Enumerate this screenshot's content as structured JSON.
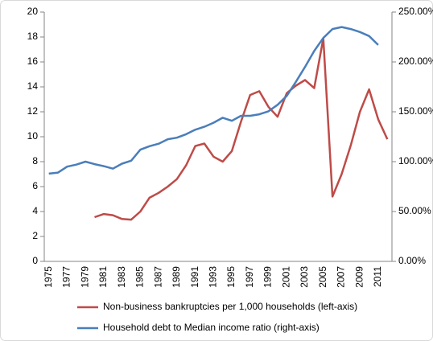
{
  "chart_data": {
    "type": "line",
    "categories": [
      "1975",
      null,
      "1977",
      null,
      "1979",
      null,
      "1981",
      null,
      "1983",
      null,
      "1985",
      null,
      "1987",
      null,
      "1989",
      null,
      "1991",
      null,
      "1993",
      null,
      "1995",
      null,
      "1997",
      null,
      "1999",
      null,
      "2001",
      null,
      "2003",
      null,
      "2005",
      null,
      "2007",
      null,
      "2009",
      null,
      "2011",
      null
    ],
    "series": [
      {
        "name": "Non-business bankruptcies per 1,000 households (left-axis)",
        "color": "#be4b48",
        "values": [
          null,
          null,
          null,
          null,
          null,
          3.55,
          3.8,
          3.7,
          3.4,
          3.35,
          4.0,
          5.1,
          5.5,
          6.0,
          6.6,
          7.7,
          9.25,
          9.45,
          8.4,
          8.0,
          8.85,
          11.2,
          13.35,
          13.65,
          12.4,
          11.6,
          13.5,
          14.1,
          14.55,
          13.9,
          17.9,
          5.2,
          7.0,
          9.3,
          12.0,
          13.8,
          11.4,
          9.8
        ]
      },
      {
        "name": "Household debt to Median income ratio (right-axis)",
        "color": "#4a7ebb",
        "axis": "y2",
        "values": [
          88,
          89,
          95,
          97,
          100,
          97.5,
          95.5,
          93,
          98,
          101,
          112,
          115.5,
          118,
          122.5,
          124,
          127.5,
          132,
          135,
          139,
          144,
          141,
          146,
          146,
          147.5,
          150.5,
          157,
          166,
          180,
          195,
          211,
          224,
          233,
          235,
          233,
          230,
          226,
          217,
          null
        ]
      }
    ],
    "ylim": [
      0,
      20
    ],
    "yticks": [
      0,
      2,
      4,
      6,
      8,
      10,
      12,
      14,
      16,
      18,
      20
    ],
    "y2lim": [
      0,
      250
    ],
    "y2ticks": [
      {
        "value": 0,
        "label": "0.00%"
      },
      {
        "value": 50,
        "label": "50.00%"
      },
      {
        "value": 100,
        "label": "100.00%"
      },
      {
        "value": 150,
        "label": "150.00%"
      },
      {
        "value": 200,
        "label": "200.00%"
      },
      {
        "value": 250,
        "label": "250.00%"
      }
    ],
    "legend": "bottom"
  }
}
